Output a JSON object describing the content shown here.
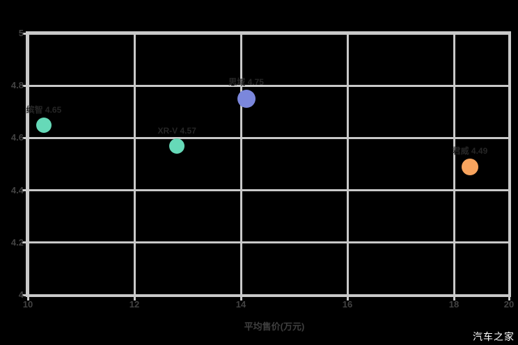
{
  "watermark": {
    "text": "汽车之家"
  },
  "chart_data": {
    "type": "scatter",
    "title": "",
    "xlabel": "平均售价(万元)",
    "ylabel": "",
    "xlim": [
      10,
      20
    ],
    "ylim": [
      4,
      5
    ],
    "x_ticks": [
      "10",
      "12",
      "14",
      "16",
      "18",
      "20"
    ],
    "y_ticks": [
      "5",
      "4.8",
      "4.6",
      "4.4",
      "4.2",
      "4"
    ],
    "grid": true,
    "legend_position": "none",
    "background_color": "#000000",
    "grid_color": "#c9c9c9",
    "tick_label_color": "#424242",
    "point_label_color": "#262626",
    "points": [
      {
        "x": 10.3,
        "y": 4.65,
        "r": 11,
        "color": "#66d9b8",
        "label": "缤智 4.65"
      },
      {
        "x": 12.8,
        "y": 4.57,
        "r": 11,
        "color": "#66d9b8",
        "label": "XR-V 4.57"
      },
      {
        "x": 14.1,
        "y": 4.75,
        "r": 13,
        "color": "#7b87dc",
        "label": "思域 4.75"
      },
      {
        "x": 18.3,
        "y": 4.49,
        "r": 12,
        "color": "#f9a45e",
        "label": "君威 4.49"
      }
    ]
  }
}
